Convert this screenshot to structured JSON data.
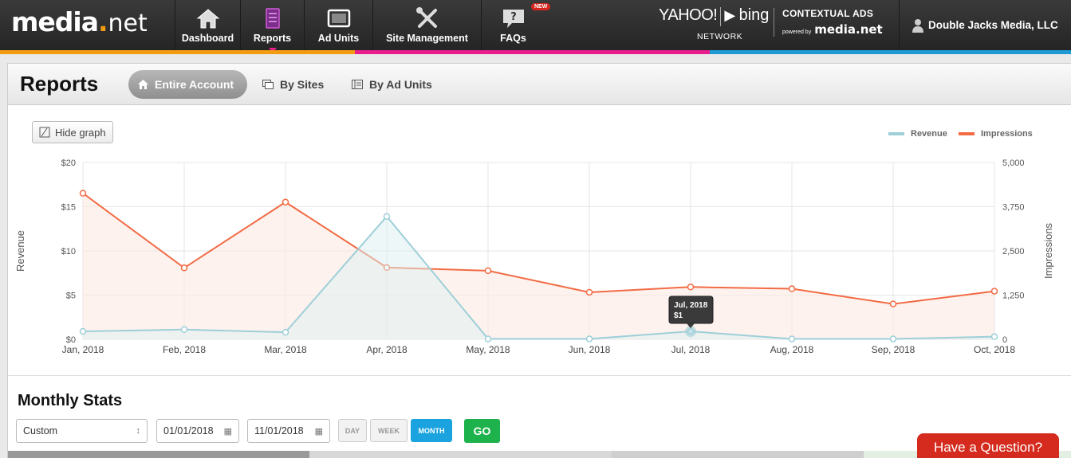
{
  "nav": {
    "logo": {
      "part1": "media",
      "dot": ".",
      "part2": "net"
    },
    "items": [
      {
        "label": "Dashboard",
        "icon": "home-icon"
      },
      {
        "label": "Reports",
        "icon": "reports-icon"
      },
      {
        "label": "Ad Units",
        "icon": "ad-units-icon"
      },
      {
        "label": "Site Management",
        "icon": "tools-icon"
      },
      {
        "label": "FAQs",
        "icon": "faq-icon",
        "badge": "NEW",
        "glyph": "?"
      }
    ],
    "partner": {
      "yahoo": "YAHOO!",
      "bing": "bing",
      "network": "NETWORK"
    },
    "contextual": {
      "title": "CONTEXTUAL ADS",
      "powered": "powered by",
      "brand": "media.net"
    },
    "account_name": "Double Jacks Media, LLC"
  },
  "page": {
    "title": "Reports",
    "tabs": [
      {
        "label": "Entire Account",
        "active": true,
        "icon": "home-icon"
      },
      {
        "label": "By Sites",
        "active": false,
        "icon": "sites-icon"
      },
      {
        "label": "By Ad Units",
        "active": false,
        "icon": "ad-units-icon"
      }
    ],
    "hide_graph_label": "Hide graph"
  },
  "colors": {
    "revenue": "#9ecfd8",
    "impressions": "#f26b45",
    "accent": "#1aa3df",
    "go": "#1db24b",
    "question": "#d42b1e"
  },
  "chart_data": {
    "type": "line",
    "categories": [
      "Jan, 2018",
      "Feb, 2018",
      "Mar, 2018",
      "Apr, 2018",
      "May, 2018",
      "Jun, 2018",
      "Jul, 2018",
      "Aug, 2018",
      "Sep, 2018",
      "Oct, 2018"
    ],
    "series": [
      {
        "name": "Revenue",
        "axis": "left",
        "values": [
          0.9,
          1.1,
          0.8,
          13.9,
          0.05,
          0.05,
          0.9,
          0.05,
          0.05,
          0.3
        ]
      },
      {
        "name": "Impressions",
        "axis": "right",
        "values": [
          4130,
          2020,
          3880,
          2030,
          1940,
          1330,
          1480,
          1430,
          1000,
          1360
        ]
      }
    ],
    "left_axis": {
      "label": "Revenue",
      "ylim": [
        0,
        20
      ],
      "ticks": [
        "$0",
        "$5",
        "$10",
        "$15",
        "$20"
      ]
    },
    "right_axis": {
      "label": "Impressions",
      "ylim": [
        0,
        5000
      ],
      "ticks": [
        "0",
        "1,250",
        "2,500",
        "3,750",
        "5,000"
      ]
    },
    "grid": true,
    "legend_position": "top-right",
    "tooltip": {
      "title": "Jul, 2018",
      "value": "$1"
    }
  },
  "monthly_stats": {
    "title": "Monthly Stats",
    "range_select": "Custom",
    "start_date": "01/01/2018",
    "end_date": "11/01/2018",
    "granularity": [
      "DAY",
      "WEEK",
      "MONTH"
    ],
    "selected_granularity": "MONTH",
    "go_label": "GO"
  },
  "help_button": "Have a Question?"
}
